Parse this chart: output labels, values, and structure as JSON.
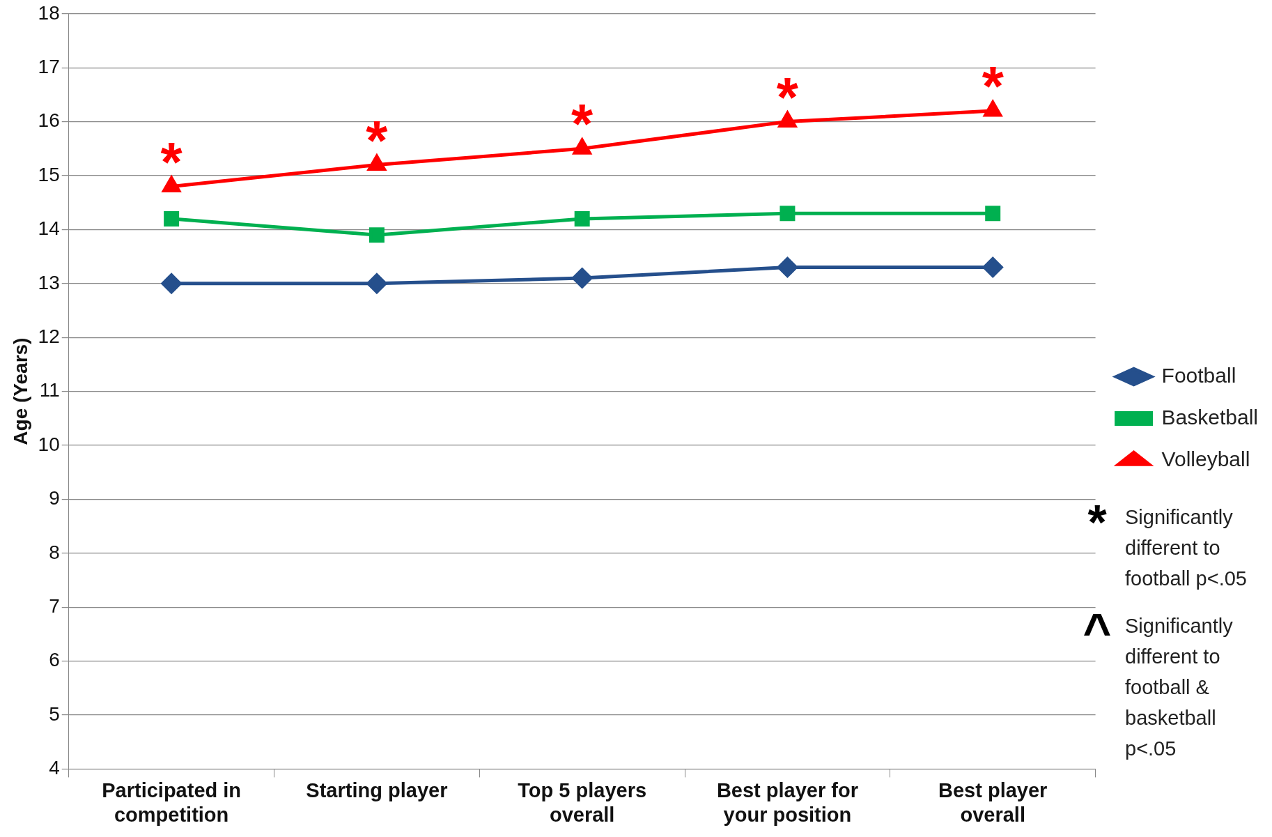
{
  "chart_data": {
    "type": "line",
    "ylabel": "Age (Years)",
    "categories": [
      "Participated in competition",
      "Starting player",
      "Top 5 players overall",
      "Best player for your position",
      "Best player overall"
    ],
    "series": [
      {
        "name": "Football",
        "color": "#254f8c",
        "marker": "diamond",
        "values": [
          13.0,
          13.0,
          13.1,
          13.3,
          13.3
        ]
      },
      {
        "name": "Basketball",
        "color": "#00b050",
        "marker": "square",
        "values": [
          14.2,
          13.9,
          14.2,
          14.3,
          14.3
        ]
      },
      {
        "name": "Volleyball",
        "color": "#ff0000",
        "marker": "triangle",
        "values": [
          14.8,
          15.2,
          15.5,
          16.0,
          16.2
        ]
      }
    ],
    "ylim": [
      4,
      18
    ],
    "yticks": [
      4,
      5,
      6,
      7,
      8,
      9,
      10,
      11,
      12,
      13,
      14,
      15,
      16,
      17,
      18
    ],
    "grid": "y",
    "legend": "right",
    "line_style": "solid",
    "annotations": [
      {
        "text": "*",
        "x": "Participated in competition",
        "y": 14.8
      },
      {
        "text": "*",
        "x": "Starting player",
        "y": 15.2
      },
      {
        "text": "*",
        "x": "Top 5 players overall",
        "y": 15.5
      },
      {
        "text": "*",
        "x": "Best player for your position",
        "y": 16.0
      },
      {
        "text": "*",
        "x": "Best player overall",
        "y": 16.2
      },
      "*",
      "Significantly different to football p<.05",
      "^",
      "Significantly different to football & basketball p<.05"
    ]
  }
}
